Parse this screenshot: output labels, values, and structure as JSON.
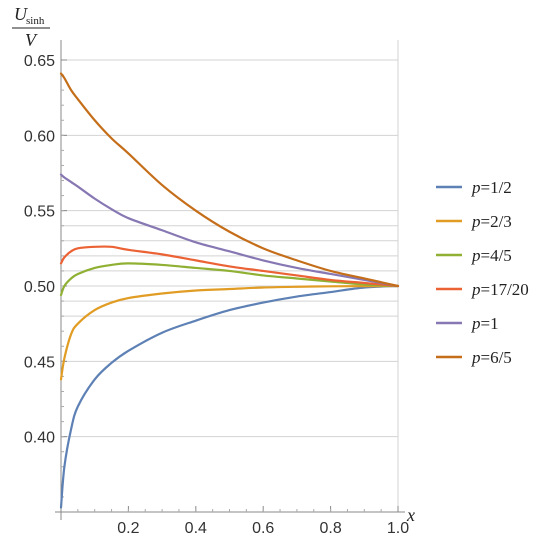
{
  "chart_data": {
    "type": "line",
    "title": "",
    "xlabel": "x",
    "ylabel": {
      "numerator": "U",
      "numerator_subscript": "sinh",
      "denominator": "V"
    },
    "xlim": [
      0,
      1.0
    ],
    "ylim": [
      0.35,
      0.655
    ],
    "x_ticks": [
      "0.2",
      "0.4",
      "0.6",
      "0.8",
      "1.0"
    ],
    "y_ticks": [
      "0.40",
      "0.45",
      "0.50",
      "0.55",
      "0.60",
      "0.65"
    ],
    "grid": "horizontal and vertical lines at selected values",
    "legend_position": "right",
    "x": [
      0.0,
      0.01,
      0.03,
      0.05,
      0.1,
      0.15,
      0.2,
      0.3,
      0.4,
      0.5,
      0.6,
      0.7,
      0.8,
      0.9,
      1.0
    ],
    "series": [
      {
        "name": "p=1/2",
        "color": "#5E81B5",
        "values": [
          0.353,
          0.38,
          0.405,
          0.42,
          0.438,
          0.449,
          0.457,
          0.469,
          0.477,
          0.484,
          0.489,
          0.493,
          0.496,
          0.499,
          0.5
        ]
      },
      {
        "name": "p=2/3",
        "color": "#E19C24",
        "values": [
          0.438,
          0.452,
          0.468,
          0.475,
          0.484,
          0.489,
          0.492,
          0.495,
          0.497,
          0.498,
          0.499,
          0.4995,
          0.4998,
          0.4999,
          0.5
        ]
      },
      {
        "name": "p=4/5",
        "color": "#8FB032",
        "values": [
          0.494,
          0.5,
          0.505,
          0.508,
          0.512,
          0.514,
          0.515,
          0.514,
          0.512,
          0.51,
          0.507,
          0.505,
          0.503,
          0.501,
          0.5
        ]
      },
      {
        "name": "p=17/20",
        "color": "#EB6235",
        "values": [
          0.515,
          0.519,
          0.523,
          0.525,
          0.526,
          0.526,
          0.524,
          0.521,
          0.517,
          0.513,
          0.51,
          0.507,
          0.504,
          0.502,
          0.5
        ]
      },
      {
        "name": "p=1",
        "color": "#8778B3",
        "values": [
          0.574,
          0.572,
          0.569,
          0.566,
          0.558,
          0.551,
          0.545,
          0.537,
          0.529,
          0.523,
          0.517,
          0.512,
          0.508,
          0.504,
          0.5
        ]
      },
      {
        "name": "p=6/5",
        "color": "#C56E1A",
        "values": [
          0.641,
          0.638,
          0.63,
          0.624,
          0.61,
          0.598,
          0.588,
          0.567,
          0.55,
          0.536,
          0.525,
          0.517,
          0.51,
          0.505,
          0.5
        ]
      }
    ]
  },
  "legend_items": [
    {
      "var": "p",
      "rest": "=1/2"
    },
    {
      "var": "p",
      "rest": "=2/3"
    },
    {
      "var": "p",
      "rest": "=4/5"
    },
    {
      "var": "p",
      "rest": "=17/20"
    },
    {
      "var": "p",
      "rest": "=1"
    },
    {
      "var": "p",
      "rest": "=6/5"
    }
  ]
}
